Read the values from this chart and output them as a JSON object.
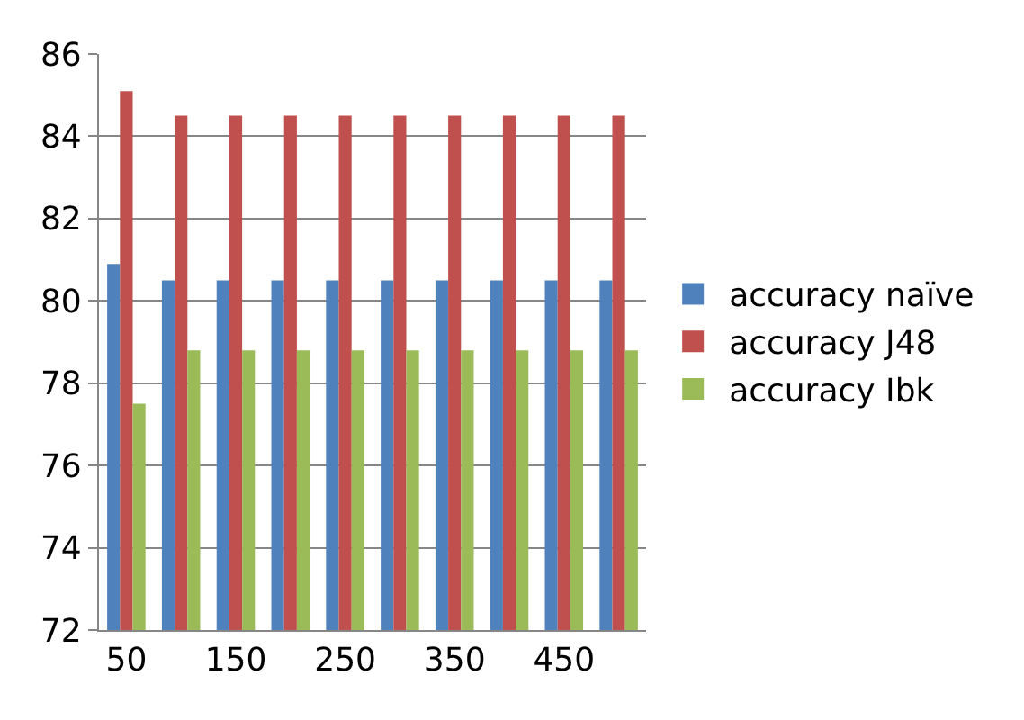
{
  "chart_data": {
    "type": "bar",
    "categories": [
      "50",
      null,
      "150",
      null,
      "250",
      null,
      "350",
      null,
      "450",
      null
    ],
    "series": [
      {
        "name": "accuracy naïve",
        "color": "#4f81bd",
        "values": [
          80.9,
          80.5,
          80.5,
          80.5,
          80.5,
          80.5,
          80.5,
          80.5,
          80.5,
          80.5
        ]
      },
      {
        "name": "accuracy J48",
        "color": "#c0504d",
        "values": [
          85.1,
          84.5,
          84.5,
          84.5,
          84.5,
          84.5,
          84.5,
          84.5,
          84.5,
          84.5
        ]
      },
      {
        "name": "accuracy Ibk",
        "color": "#9bbb59",
        "values": [
          77.5,
          78.8,
          78.8,
          78.8,
          78.8,
          78.8,
          78.8,
          78.8,
          78.8,
          78.8
        ]
      }
    ],
    "ylim": [
      72,
      86
    ],
    "yticks": [
      72,
      74,
      76,
      78,
      80,
      82,
      84,
      86
    ],
    "grid": "y",
    "legend": "right"
  }
}
